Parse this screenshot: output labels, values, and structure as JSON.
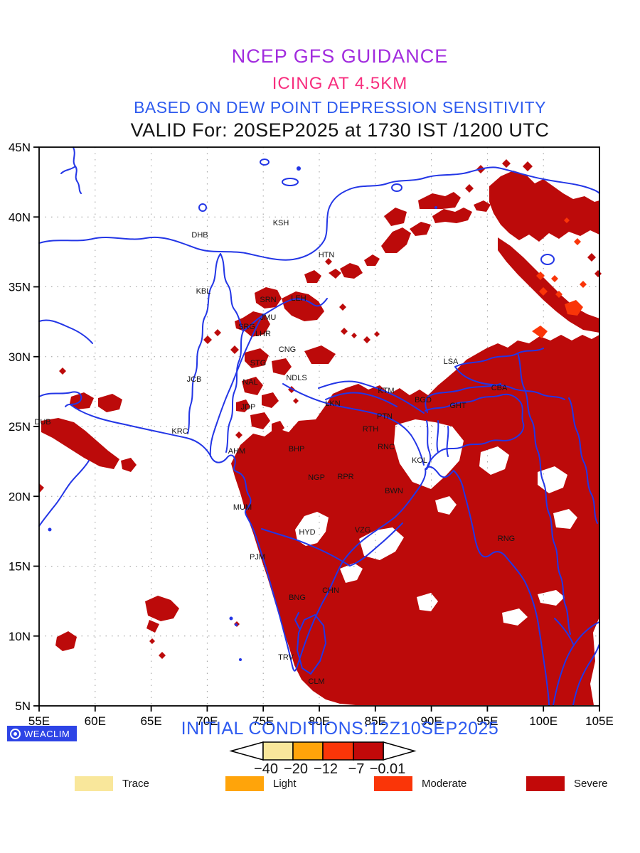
{
  "header": {
    "line1": "NCEP GFS GUIDANCE",
    "line1_css": "color:#A12BDE",
    "line2": "ICING AT 4.5KM",
    "line2_css": "color:#F72E7E",
    "line3": "BASED ON DEW POINT DEPRESSION SENSITIVITY",
    "line3_css": "color:#2E5BEF",
    "line4": "VALID For: 20SEP2025 at 1730 IST /1200 UTC",
    "line4_css": "color:#141414"
  },
  "map": {
    "colors": {
      "severe": "#BC0A0A",
      "moderate": "#FA3508",
      "water": "#2336E6",
      "grid": "#9A9A9A",
      "frame": "#000000",
      "station_text": "#141414"
    },
    "x_tick_labels": [
      "55E",
      "60E",
      "65E",
      "70E",
      "75E",
      "80E",
      "85E",
      "90E",
      "95E",
      "100E",
      "105E"
    ],
    "y_tick_labels": [
      "45N",
      "40N",
      "35N",
      "30N",
      "25N",
      "20N",
      "15N",
      "10N",
      "5N"
    ],
    "stations": [
      [
        "KSH",
        395,
        313
      ],
      [
        "DHB",
        281,
        330
      ],
      [
        "HTN",
        459,
        358
      ],
      [
        "KBL",
        286,
        409
      ],
      [
        "SRN",
        377,
        421
      ],
      [
        "LEH",
        420,
        419
      ],
      [
        "JMU",
        377,
        446
      ],
      [
        "SRG",
        347,
        459
      ],
      [
        "LHR",
        370,
        469
      ],
      [
        "CNG",
        404,
        491
      ],
      [
        "STG",
        363,
        510
      ],
      [
        "JCB",
        273,
        533
      ],
      [
        "NAL",
        352,
        537
      ],
      [
        "NDLS",
        417,
        531
      ],
      [
        "JDP",
        349,
        572
      ],
      [
        "LKN",
        468,
        567
      ],
      [
        "KTM",
        543,
        549
      ],
      [
        "LSA",
        634,
        508
      ],
      [
        "CBA",
        702,
        545
      ],
      [
        "BGD",
        595,
        562
      ],
      [
        "GHT",
        644,
        570
      ],
      [
        "DUB",
        60,
        593
      ],
      [
        "KRC",
        253,
        606
      ],
      [
        "PTN",
        541,
        585
      ],
      [
        "RTH",
        521,
        603
      ],
      [
        "RNC",
        543,
        628
      ],
      [
        "AHM",
        333,
        634
      ],
      [
        "BHP",
        417,
        631
      ],
      [
        "KOL",
        590,
        647
      ],
      [
        "NGP",
        445,
        671
      ],
      [
        "RPR",
        486,
        670
      ],
      [
        "BWN",
        554,
        690
      ],
      [
        "MUM",
        341,
        713
      ],
      [
        "HYD",
        432,
        748
      ],
      [
        "VZG",
        510,
        745
      ],
      [
        "RNG",
        712,
        757
      ],
      [
        "PJM",
        362,
        783
      ],
      [
        "BNG",
        418,
        840
      ],
      [
        "CHN",
        465,
        830
      ],
      [
        "TRV",
        402,
        924
      ],
      [
        "CLM",
        445,
        958
      ]
    ]
  },
  "footer": {
    "logo_text": "WEACLIM",
    "initial_conditions": "INITIAL CONDITIONS:12Z10SEP2025",
    "initial_conditions_css": "color:#2D5AF0",
    "colorbar": {
      "tick_labels": [
        "−40",
        "−20",
        "−12",
        "−7",
        "−0.01"
      ],
      "colors": [
        "#F9E79B",
        "#FFA40A",
        "#FA3508",
        "#C20909"
      ]
    },
    "legend": [
      {
        "label": "Trace",
        "color": "#F9E79B",
        "css": "background:#F9E79B"
      },
      {
        "label": "Light",
        "color": "#FFA40A",
        "css": "background:#FFA40A"
      },
      {
        "label": "Moderate",
        "color": "#FA3508",
        "css": "background:#FA3508"
      },
      {
        "label": "Severe",
        "color": "#C20909",
        "css": "background:#C20909"
      }
    ]
  }
}
